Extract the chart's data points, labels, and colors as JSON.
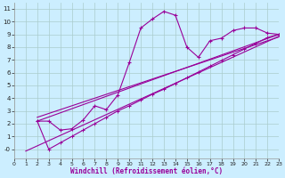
{
  "xlabel": "Windchill (Refroidissement éolien,°C)",
  "bg_color": "#cceeff",
  "grid_color": "#aacccc",
  "line_color": "#990099",
  "xlim": [
    0,
    23
  ],
  "ylim": [
    -0.7,
    11.5
  ],
  "xticks": [
    0,
    1,
    2,
    3,
    4,
    5,
    6,
    7,
    8,
    9,
    10,
    11,
    12,
    13,
    14,
    15,
    16,
    17,
    18,
    19,
    20,
    21,
    22,
    23
  ],
  "yticks": [
    0,
    1,
    2,
    3,
    4,
    5,
    6,
    7,
    8,
    9,
    10,
    11
  ],
  "ytick_labels": [
    "-0",
    "1",
    "2",
    "3",
    "4",
    "5",
    "6",
    "7",
    "8",
    "9",
    "10",
    "11"
  ],
  "jagged_x": [
    2,
    3,
    4,
    5,
    6,
    7,
    8,
    9,
    10,
    11,
    12,
    13,
    14,
    15,
    16,
    17,
    18,
    19,
    20,
    21,
    22,
    23
  ],
  "jagged_y": [
    2.2,
    2.2,
    1.5,
    1.6,
    2.3,
    3.4,
    3.1,
    4.25,
    6.8,
    9.5,
    10.2,
    10.8,
    10.5,
    8.0,
    7.2,
    8.5,
    8.7,
    9.3,
    9.5,
    9.5,
    9.1,
    9.0
  ],
  "trend1_x": [
    2,
    23
  ],
  "trend1_y": [
    2.2,
    9.0
  ],
  "trend2_x": [
    2,
    23
  ],
  "trend2_y": [
    2.5,
    8.8
  ],
  "trend3_x": [
    1,
    23
  ],
  "trend3_y": [
    -0.15,
    8.85
  ],
  "dot_x": [
    2,
    3,
    4,
    5,
    6,
    7,
    8,
    9,
    10,
    11,
    12,
    13,
    14,
    15,
    16,
    17,
    18,
    19,
    20,
    21,
    22,
    23
  ],
  "dot_y": [
    2.2,
    0.0,
    0.5,
    1.0,
    1.5,
    2.0,
    2.5,
    3.0,
    3.4,
    3.85,
    4.3,
    4.7,
    5.15,
    5.6,
    6.05,
    6.5,
    6.95,
    7.4,
    7.85,
    8.3,
    8.75,
    9.0
  ]
}
